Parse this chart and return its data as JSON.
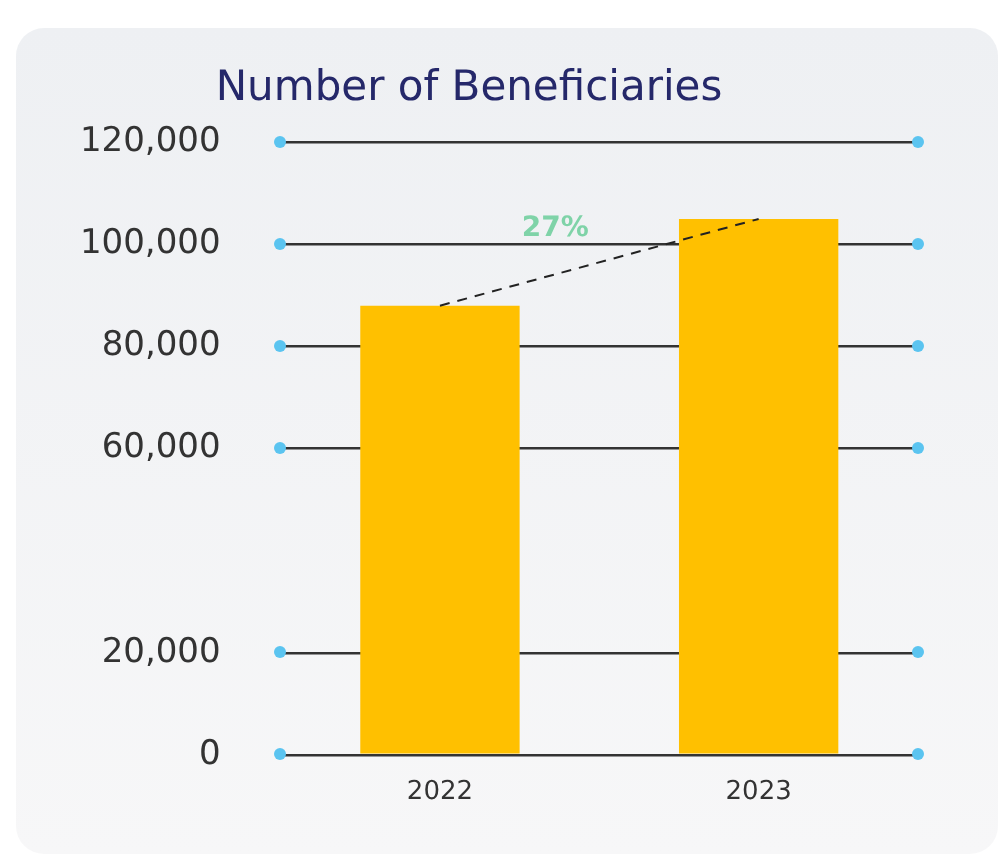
{
  "chart_data": {
    "type": "bar",
    "title": "Number of Beneficiaries",
    "categories": [
      "2022",
      "2023"
    ],
    "series": [
      {
        "color": "#ffc000",
        "values": [
          88000,
          105000
        ]
      }
    ],
    "ylim": [
      0,
      120000
    ],
    "yticks": [
      0,
      {
        "value": 20000,
        "label": "20,000"
      },
      {
        "value": 60000,
        "label": "60,000"
      },
      {
        "value": 80000,
        "label": "80,000"
      },
      {
        "value": 100000,
        "label": "100,000"
      },
      {
        "value": 120000,
        "label": "120,000"
      }
    ],
    "grid": "y",
    "legend": false,
    "annotations": [
      "27%"
    ]
  }
}
